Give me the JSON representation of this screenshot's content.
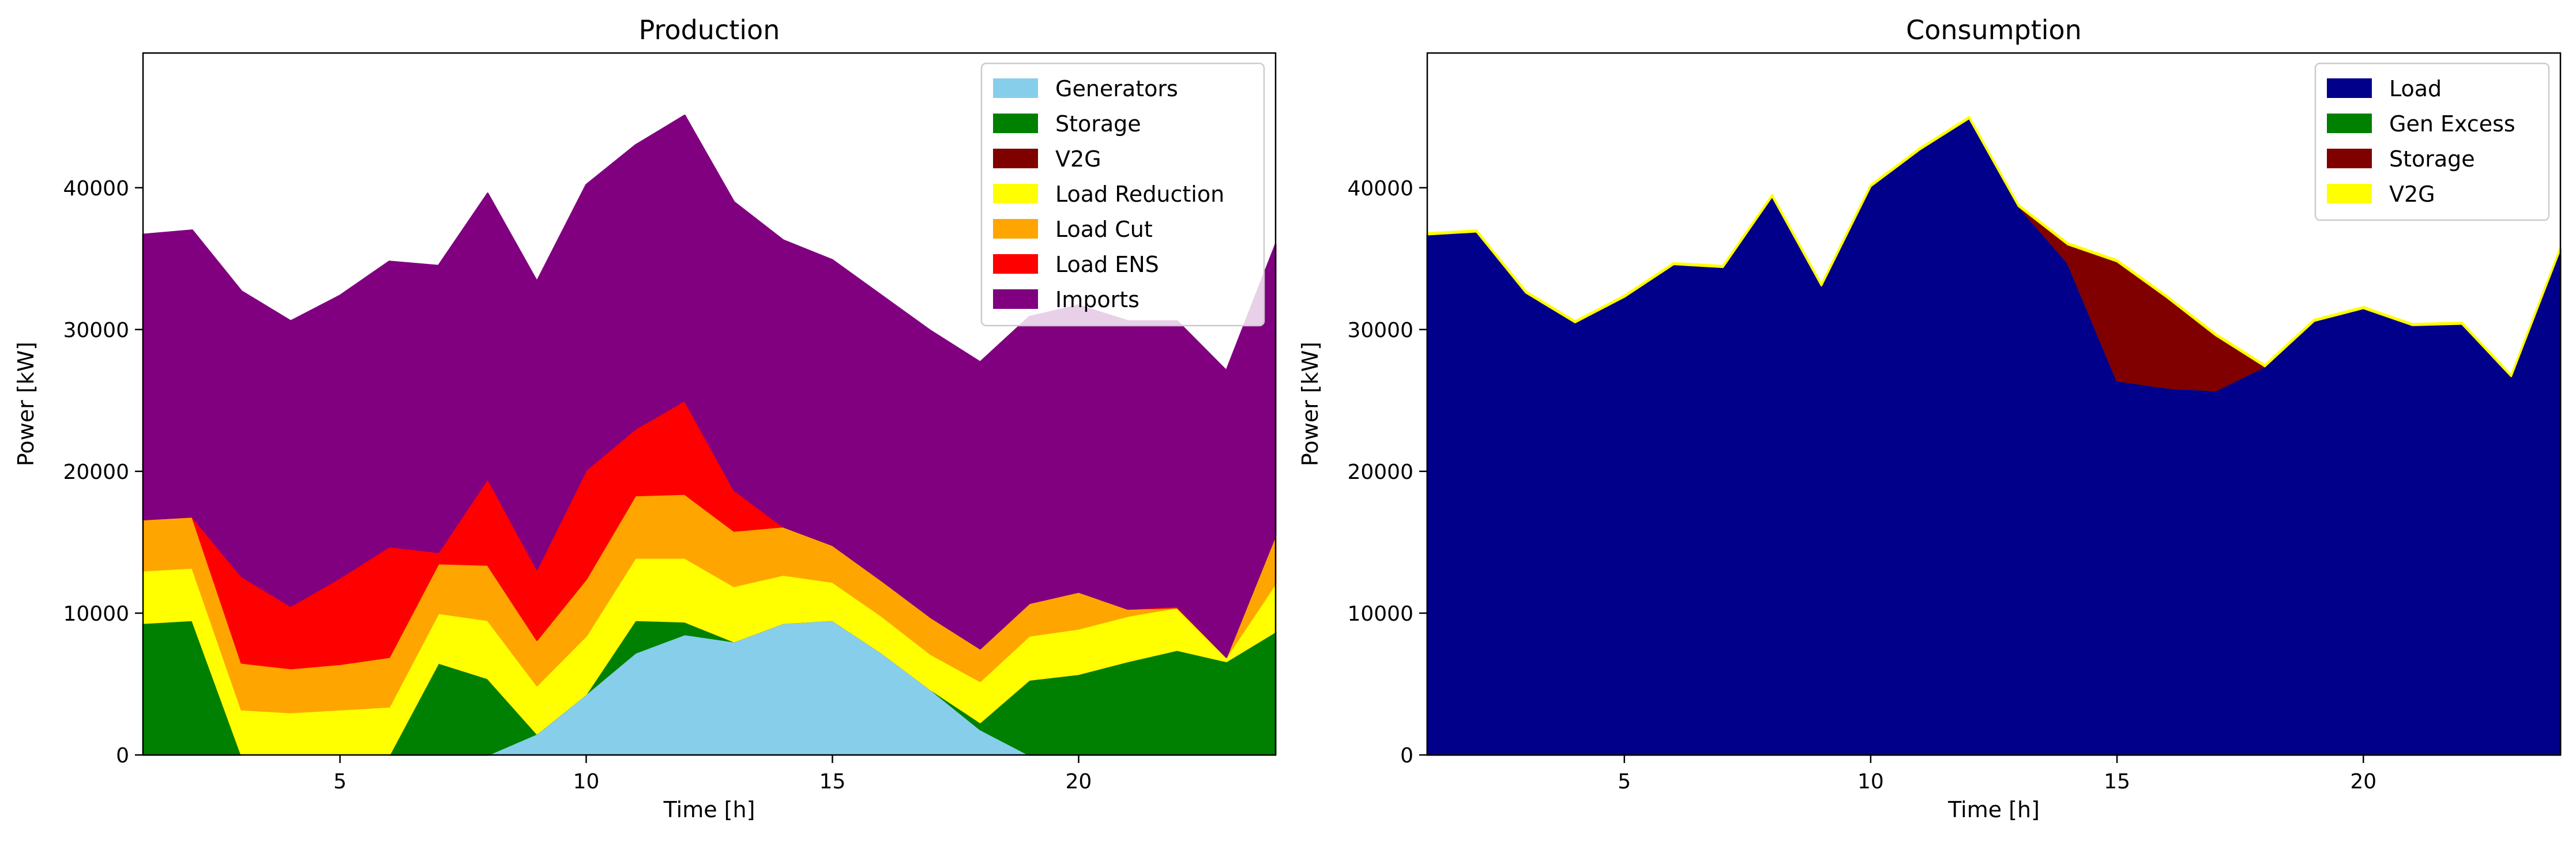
{
  "chart_data": [
    {
      "type": "area",
      "stacked": true,
      "title": "Production",
      "xlabel": "Time [h]",
      "ylabel": "Power [kW]",
      "xlim": [
        1,
        24
      ],
      "ylim": [
        0,
        49500
      ],
      "xticks": [
        5,
        10,
        15,
        20
      ],
      "yticks": [
        0,
        10000,
        20000,
        30000,
        40000
      ],
      "grid": false,
      "legend_position": "top-right",
      "x": [
        1,
        2,
        3,
        4,
        5,
        6,
        7,
        8,
        9,
        10,
        11,
        12,
        13,
        14,
        15,
        16,
        17,
        18,
        19,
        20,
        21,
        22,
        23,
        24
      ],
      "series": [
        {
          "name": "Generators",
          "color": "#87ceeb",
          "values": [
            0,
            0,
            0,
            0,
            0,
            0,
            0,
            0,
            1500,
            4300,
            7200,
            8500,
            8000,
            9300,
            9500,
            7200,
            4600,
            1800,
            0,
            0,
            0,
            0,
            0,
            0
          ]
        },
        {
          "name": "Storage",
          "color": "#008000",
          "values": [
            9300,
            9500,
            0,
            0,
            0,
            0,
            6500,
            5400,
            0,
            0,
            2300,
            900,
            0,
            0,
            0,
            0,
            0,
            500,
            5300,
            5700,
            6600,
            7400,
            6600,
            8700
          ]
        },
        {
          "name": "V2G",
          "color": "#800000",
          "values": [
            0,
            0,
            0,
            0,
            0,
            0,
            0,
            0,
            0,
            0,
            0,
            0,
            0,
            0,
            0,
            0,
            0,
            0,
            0,
            0,
            0,
            0,
            0,
            0
          ]
        },
        {
          "name": "Load Reduction",
          "color": "#ffff00",
          "values": [
            3700,
            3700,
            3200,
            3000,
            3200,
            3400,
            3500,
            4100,
            3400,
            4100,
            4400,
            4500,
            3900,
            3400,
            2700,
            2600,
            2500,
            2900,
            3100,
            3200,
            3200,
            3000,
            300,
            3400
          ]
        },
        {
          "name": "Load Cut",
          "color": "#ffa500",
          "values": [
            3600,
            3600,
            3300,
            3100,
            3200,
            3500,
            3500,
            3900,
            3200,
            4000,
            4400,
            4500,
            3900,
            3400,
            2600,
            2500,
            2600,
            2300,
            2300,
            2600,
            500,
            0,
            0,
            3400
          ]
        },
        {
          "name": "Load ENS",
          "color": "#ff0000",
          "values": [
            0,
            0,
            6100,
            4400,
            6100,
            7800,
            800,
            6100,
            5000,
            7700,
            4700,
            6600,
            2900,
            0,
            0,
            0,
            0,
            0,
            0,
            0,
            0,
            100,
            0,
            0
          ]
        },
        {
          "name": "Imports",
          "color": "#800080",
          "values": [
            20100,
            20200,
            20100,
            20100,
            19900,
            20100,
            20200,
            20100,
            20300,
            20100,
            20000,
            20100,
            20300,
            20200,
            20100,
            20100,
            20200,
            20200,
            20200,
            20200,
            20300,
            20100,
            20200,
            20500
          ]
        }
      ]
    },
    {
      "type": "area",
      "stacked": true,
      "title": "Consumption",
      "xlabel": "Time [h]",
      "ylabel": "Power [kW]",
      "xlim": [
        1,
        24
      ],
      "ylim": [
        0,
        49500
      ],
      "xticks": [
        5,
        10,
        15,
        20
      ],
      "yticks": [
        0,
        10000,
        20000,
        30000,
        40000
      ],
      "grid": false,
      "legend_position": "top-right",
      "x": [
        1,
        2,
        3,
        4,
        5,
        6,
        7,
        8,
        9,
        10,
        11,
        12,
        13,
        14,
        15,
        16,
        17,
        18,
        19,
        20,
        21,
        22,
        23,
        24
      ],
      "series": [
        {
          "name": "Load",
          "color": "#00008b",
          "values": [
            36700,
            36900,
            32600,
            30500,
            32300,
            34600,
            34400,
            39400,
            33100,
            40100,
            42700,
            44900,
            38700,
            34700,
            26400,
            25900,
            25700,
            27400,
            30600,
            31500,
            30300,
            30400,
            26700,
            35700
          ]
        },
        {
          "name": "Gen Excess",
          "color": "#008000",
          "values": [
            0,
            0,
            0,
            0,
            0,
            0,
            0,
            0,
            0,
            0,
            0,
            0,
            0,
            0,
            0,
            0,
            0,
            0,
            0,
            0,
            0,
            0,
            0,
            0
          ]
        },
        {
          "name": "Storage",
          "color": "#800000",
          "values": [
            0,
            0,
            0,
            0,
            0,
            0,
            0,
            0,
            0,
            0,
            0,
            0,
            0,
            1300,
            8400,
            6400,
            3900,
            0,
            0,
            0,
            0,
            0,
            0,
            0
          ]
        },
        {
          "name": "V2G",
          "color": "#ffff00",
          "values": [
            100,
            100,
            100,
            100,
            100,
            100,
            100,
            100,
            100,
            100,
            100,
            100,
            100,
            100,
            100,
            100,
            100,
            100,
            100,
            100,
            100,
            100,
            100,
            100
          ]
        }
      ]
    }
  ]
}
